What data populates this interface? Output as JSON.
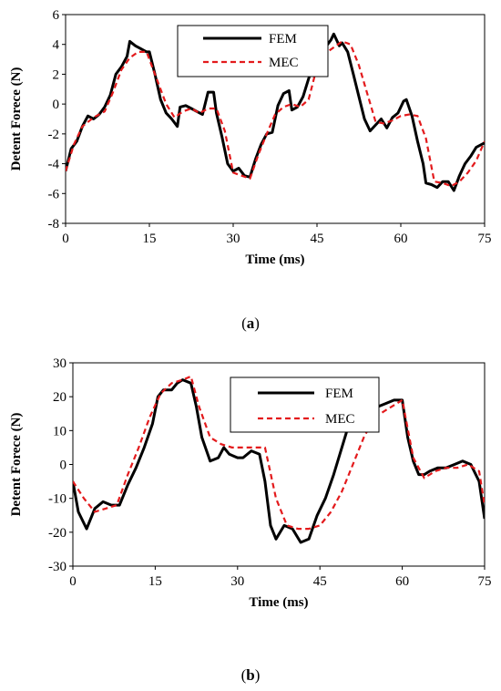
{
  "chart_data": [
    {
      "type": "line",
      "panel_label": "a",
      "xlabel": "Time (ms)",
      "ylabel": "Detent Forece  (N)",
      "xlim": [
        0,
        75
      ],
      "ylim": [
        -8,
        6
      ],
      "xticks": [
        0,
        15,
        30,
        45,
        60,
        75
      ],
      "yticks": [
        -8,
        -6,
        -4,
        -2,
        0,
        2,
        4,
        6
      ],
      "grid": false,
      "legend": "top-center",
      "series": [
        {
          "name": "FEM",
          "color": "#000000",
          "style": "solid",
          "x": [
            0,
            1,
            2,
            3,
            4,
            5,
            6,
            7,
            8,
            9,
            10,
            11,
            11.5,
            12.5,
            13.5,
            14.5,
            15,
            16,
            17,
            18,
            19,
            20,
            20.5,
            21.5,
            22.5,
            23.5,
            24.5,
            25.5,
            26.5,
            27,
            28,
            29,
            30,
            31,
            32,
            33,
            34,
            35,
            36,
            37,
            38,
            39,
            40,
            40.5,
            41.5,
            42.5,
            43.5,
            44.5,
            45.5,
            46.5,
            47.5,
            48,
            49,
            49.5,
            50.5,
            51.5,
            52.5,
            53.5,
            54.5,
            55.5,
            56.5,
            57.5,
            58.5,
            59.5,
            60.5,
            61,
            62,
            63,
            64,
            64.5,
            65.5,
            66.5,
            67.5,
            68.5,
            69.5,
            70.5,
            71.5,
            72.5,
            73.5,
            75
          ],
          "y": [
            -4.5,
            -3.0,
            -2.5,
            -1.5,
            -0.8,
            -1.0,
            -0.7,
            -0.2,
            0.6,
            2.0,
            2.5,
            3.2,
            4.2,
            3.9,
            3.7,
            3.5,
            3.5,
            2.0,
            0.3,
            -0.6,
            -1.0,
            -1.5,
            -0.2,
            -0.1,
            -0.3,
            -0.5,
            -0.7,
            0.8,
            0.8,
            -0.6,
            -2.2,
            -4.0,
            -4.5,
            -4.3,
            -4.8,
            -4.9,
            -3.7,
            -2.7,
            -2.0,
            -1.9,
            -0.1,
            0.7,
            0.9,
            -0.4,
            -0.2,
            0.5,
            1.7,
            2.8,
            3.2,
            3.8,
            4.3,
            4.7,
            3.9,
            4.1,
            3.5,
            2.0,
            0.5,
            -1.0,
            -1.8,
            -1.4,
            -1.0,
            -1.6,
            -0.9,
            -0.6,
            0.2,
            0.3,
            -0.8,
            -2.5,
            -4.0,
            -5.3,
            -5.4,
            -5.6,
            -5.2,
            -5.2,
            -5.8,
            -4.8,
            -4.0,
            -3.5,
            -2.9,
            -2.6
          ]
        },
        {
          "name": "MEC",
          "color": "#e31a1c",
          "style": "dashed",
          "x": [
            0,
            1.5,
            3,
            5,
            7,
            8.5,
            10,
            11.5,
            13,
            14.5,
            16,
            18,
            19.5,
            21,
            22.5,
            24,
            25.5,
            27,
            28.5,
            30,
            31.5,
            33,
            34.5,
            36,
            37.5,
            39,
            40.5,
            42,
            43.5,
            45,
            46.5,
            48,
            49.5,
            51,
            52.5,
            54,
            55.5,
            57,
            58.5,
            60,
            61.5,
            63,
            64.5,
            66,
            67.5,
            69,
            70.5,
            72,
            73.5,
            75
          ],
          "y": [
            -4.5,
            -2.7,
            -1.5,
            -0.9,
            -0.5,
            0.8,
            2.3,
            3.1,
            3.5,
            3.5,
            2.0,
            0.0,
            -0.9,
            -0.5,
            -0.3,
            -0.6,
            -0.3,
            -0.3,
            -1.8,
            -4.6,
            -4.8,
            -5.0,
            -3.4,
            -2.0,
            -0.7,
            -0.2,
            0.0,
            -0.2,
            0.3,
            2.5,
            3.4,
            3.8,
            4.2,
            4.0,
            2.6,
            0.7,
            -1.2,
            -1.3,
            -1.1,
            -0.8,
            -0.7,
            -0.8,
            -2.3,
            -5.2,
            -5.3,
            -5.5,
            -5.2,
            -4.6,
            -3.8,
            -2.5
          ]
        }
      ]
    },
    {
      "type": "line",
      "panel_label": "b",
      "xlabel": "Time (ms)",
      "ylabel": "Detent Forece  (N)",
      "xlim": [
        0,
        75
      ],
      "ylim": [
        -30,
        30
      ],
      "xticks": [
        0,
        15,
        30,
        45,
        60,
        75
      ],
      "yticks": [
        -30,
        -20,
        -10,
        0,
        10,
        20,
        30
      ],
      "grid": false,
      "legend": "top-center",
      "series": [
        {
          "name": "FEM",
          "color": "#000000",
          "style": "solid",
          "x": [
            0,
            1,
            2.5,
            4,
            5.5,
            7,
            8.5,
            10,
            11.5,
            13,
            14.5,
            15.5,
            16.5,
            18,
            19,
            20,
            21.5,
            22.5,
            23.5,
            25,
            26.5,
            27.5,
            28.5,
            30,
            31,
            32.5,
            34,
            35,
            36,
            37,
            38.5,
            40,
            41.5,
            43,
            44.5,
            46,
            47.5,
            49,
            50.5,
            51.5,
            52.5,
            54,
            55.5,
            57,
            58.5,
            60,
            61,
            62,
            63,
            64,
            65,
            66.5,
            68,
            69.5,
            71,
            72.5,
            74,
            75
          ],
          "y": [
            -5,
            -14,
            -19,
            -13,
            -11,
            -12,
            -12,
            -6,
            -1,
            5,
            12,
            20,
            22,
            22,
            24,
            25,
            24,
            17,
            8,
            1,
            2,
            5,
            3,
            2,
            2,
            4,
            3,
            -5,
            -18,
            -22,
            -18,
            -19,
            -23,
            -22,
            -15,
            -10,
            -3,
            5,
            13,
            15,
            16,
            17,
            17,
            18,
            19,
            19,
            8,
            1,
            -3,
            -3,
            -2,
            -1,
            -1,
            0,
            1,
            0,
            -5,
            -16
          ]
        },
        {
          "name": "MEC",
          "color": "#e31a1c",
          "style": "dashed",
          "x": [
            0,
            2,
            4,
            6,
            8,
            10,
            12,
            14,
            16,
            18,
            20,
            21.5,
            23,
            25,
            27,
            29,
            31,
            33,
            35,
            37,
            39,
            41,
            43,
            45,
            47,
            49,
            51,
            53,
            55,
            57,
            59,
            60,
            62,
            64,
            66,
            68,
            70,
            72,
            74,
            75
          ],
          "y": [
            -5,
            -10,
            -14,
            -13,
            -12,
            -3,
            5,
            14,
            21,
            24,
            25,
            26,
            17,
            8,
            6,
            5,
            5,
            5,
            5,
            -10,
            -18,
            -19,
            -19,
            -18,
            -14,
            -8,
            0,
            8,
            14,
            16,
            18,
            19,
            2,
            -4,
            -2,
            -1,
            -1,
            0,
            -2,
            -12
          ]
        }
      ]
    }
  ]
}
